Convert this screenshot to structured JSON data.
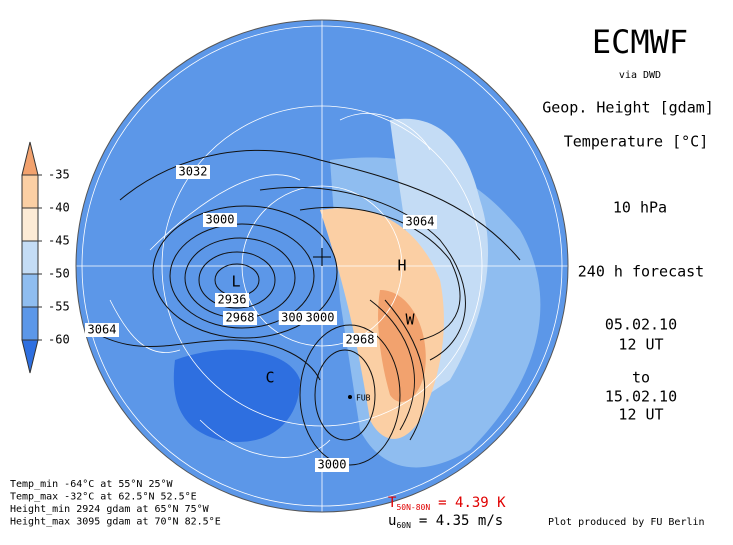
{
  "header": {
    "title": "ECMWF",
    "source": "via DWD",
    "fields": [
      "Geop. Height [gdam]",
      "Temperature [°C]"
    ],
    "level": "10 hPa",
    "forecast": "240 h forecast",
    "from_date": "05.02.10",
    "from_time": "12 UT",
    "to": "to",
    "to_date": "15.02.10",
    "to_time": "12 UT"
  },
  "colorbar": {
    "colors": [
      "#f2a26e",
      "#fbcfa4",
      "#fdebd6",
      "#c4dcf5",
      "#8fbdf0",
      "#5c97e8",
      "#2e6fe0"
    ],
    "ticks": [
      -35,
      -40,
      -45,
      -50,
      -55,
      -60
    ]
  },
  "map": {
    "contour_labels": [
      "3032",
      "3000",
      "2936",
      "2968",
      "300",
      "3000",
      "2968",
      "3064",
      "3064",
      "3000"
    ],
    "markers": [
      "H",
      "L",
      "W",
      "C"
    ],
    "place": "FUB"
  },
  "footer": {
    "stats": [
      "Temp_min -64°C at 55°N 25°W",
      "Temp_max -32°C at 62.5°N 52.5°E",
      "Height_min 2924 gdam at 65°N 75°W",
      "Height_max 3095 gdam at 70°N 82.5°E"
    ],
    "t_index": {
      "symbol": "T",
      "subscript": "50N-80N",
      "text": "= 4.39 K"
    },
    "u_index": {
      "symbol": "u",
      "subscript": "60N",
      "text": "= 4.35 m/s"
    },
    "credit": "Plot produced by FU Berlin"
  }
}
